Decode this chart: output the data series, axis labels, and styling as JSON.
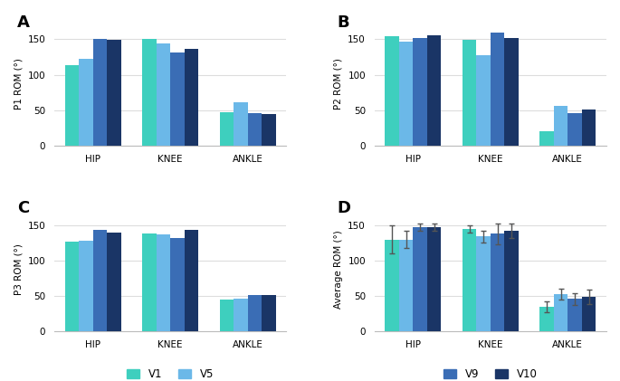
{
  "panels": [
    "A",
    "B",
    "C",
    "D"
  ],
  "groups": [
    "HIP",
    "KNEE",
    "ANKLE"
  ],
  "versions": [
    "V1",
    "V5",
    "V9",
    "V10"
  ],
  "colors": [
    "#3ECFBE",
    "#6BB8E8",
    "#3A6DB5",
    "#1A3566"
  ],
  "ylabels": [
    "P1 ROM (°)",
    "P2 ROM (°)",
    "P3 ROM (°)",
    "Average ROM (°)"
  ],
  "data": {
    "A": {
      "HIP": [
        114,
        122,
        151,
        149
      ],
      "KNEE": [
        150,
        144,
        131,
        136
      ],
      "ANKLE": [
        47,
        61,
        46,
        44
      ]
    },
    "B": {
      "HIP": [
        154,
        147,
        152,
        155
      ],
      "KNEE": [
        149,
        128,
        159,
        152
      ],
      "ANKLE": [
        20,
        56,
        46,
        51
      ]
    },
    "C": {
      "HIP": [
        127,
        128,
        143,
        140
      ],
      "KNEE": [
        138,
        137,
        132,
        143
      ],
      "ANKLE": [
        45,
        46,
        51,
        52
      ]
    },
    "D": {
      "HIP": [
        130,
        130,
        147,
        147
      ],
      "KNEE": [
        145,
        134,
        138,
        142
      ],
      "ANKLE": [
        35,
        53,
        46,
        49
      ]
    }
  },
  "errors": {
    "D": {
      "HIP": [
        20,
        12,
        5,
        5
      ],
      "KNEE": [
        5,
        8,
        15,
        10
      ],
      "ANKLE": [
        8,
        8,
        8,
        10
      ]
    }
  },
  "ylim": [
    0,
    175
  ],
  "yticks": [
    0,
    50,
    100,
    150
  ],
  "bg_color": "#ffffff",
  "grid_color": "#dddddd",
  "legend_v1_v5": [
    "V1",
    "V5"
  ],
  "legend_v9_v10": [
    "V9",
    "V10"
  ]
}
